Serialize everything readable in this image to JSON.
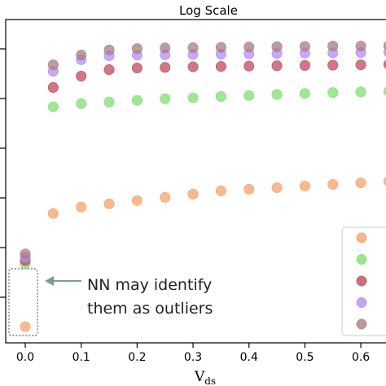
{
  "chart_data": {
    "type": "scatter",
    "title": "Log Scale",
    "xlabel_main": "V",
    "xlabel_sub": "ds",
    "ylabel": "",
    "xlim": [
      -0.035,
      0.645
    ],
    "ylim": [
      0,
      1
    ],
    "x": [
      0.0,
      0.05,
      0.1,
      0.15,
      0.2,
      0.25,
      0.3,
      0.35,
      0.4,
      0.45,
      0.5,
      0.55,
      0.6,
      0.65
    ],
    "x_ticks": [
      0.0,
      0.1,
      0.2,
      0.3,
      0.4,
      0.5,
      0.6
    ],
    "x_tick_labels": [
      "0.0",
      "0.1",
      "0.2",
      "0.3",
      "0.4",
      "0.5",
      "0.6"
    ],
    "y_tick_count": 6,
    "grid": false,
    "legend": "bottom-right",
    "series": [
      {
        "color": "#f4a36b",
        "values": [
          0.05,
          0.4,
          0.42,
          0.43,
          0.44,
          0.45,
          0.46,
          0.47,
          0.475,
          0.48,
          0.485,
          0.49,
          0.495,
          0.5
        ]
      },
      {
        "color": "#7fdf6f",
        "values": [
          0.245,
          0.73,
          0.74,
          0.745,
          0.75,
          0.755,
          0.758,
          0.762,
          0.765,
          0.768,
          0.771,
          0.774,
          0.776,
          0.778
        ]
      },
      {
        "color": "#c04a5c",
        "values": [
          0.255,
          0.79,
          0.825,
          0.845,
          0.85,
          0.852,
          0.854,
          0.855,
          0.856,
          0.857,
          0.858,
          0.859,
          0.86,
          0.861
        ]
      },
      {
        "color": "#b48cf4",
        "values": [
          0.265,
          0.84,
          0.876,
          0.888,
          0.89,
          0.891,
          0.892,
          0.893,
          0.894,
          0.895,
          0.896,
          0.897,
          0.898,
          0.899
        ]
      },
      {
        "color": "#a77e80",
        "values": [
          0.275,
          0.86,
          0.89,
          0.906,
          0.91,
          0.912,
          0.913,
          0.914,
          0.915,
          0.916,
          0.917,
          0.918,
          0.918,
          0.919
        ]
      }
    ],
    "annotation": {
      "lines": [
        "NN may identify",
        "them as outliers"
      ]
    }
  }
}
